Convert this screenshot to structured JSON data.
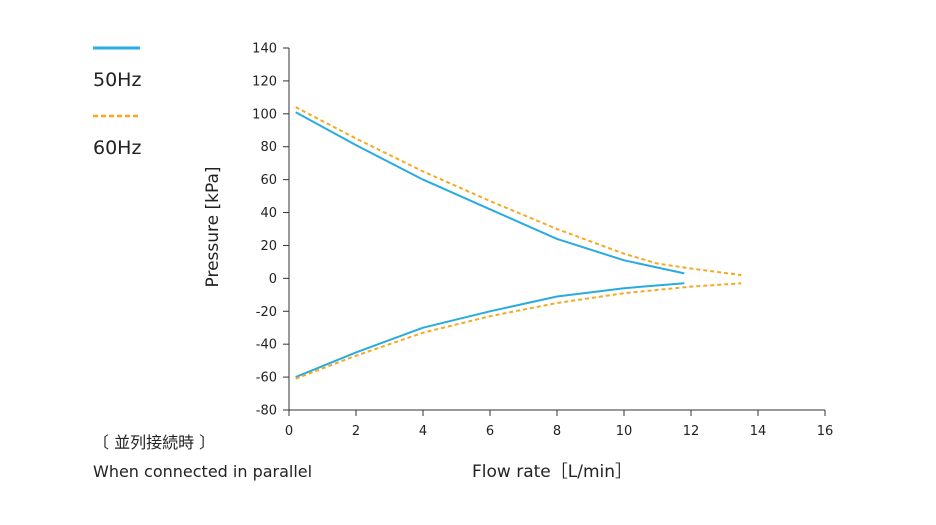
{
  "chart_data": {
    "type": "line",
    "title": "",
    "xlabel": "Flow rate［L/min］",
    "ylabel": "Pressure [kPa]",
    "xlim": [
      0,
      16
    ],
    "ylim": [
      -80,
      140
    ],
    "xticks": [
      0,
      2,
      4,
      6,
      8,
      10,
      12,
      14,
      16
    ],
    "yticks": [
      140,
      120,
      100,
      80,
      60,
      40,
      20,
      0,
      -20,
      -40,
      -60,
      -80
    ],
    "grid": false,
    "legend_position": "top-left",
    "series": [
      {
        "name": "50Hz",
        "color": "#29abe2",
        "style": "solid",
        "segments": [
          {
            "x": [
              0.2,
              2,
              4,
              6,
              8,
              10,
              11.8
            ],
            "y": [
              101,
              81,
              60,
              42,
              24,
              11,
              3
            ]
          },
          {
            "x": [
              0.2,
              2,
              4,
              6,
              8,
              10,
              11.8
            ],
            "y": [
              -60,
              -45,
              -30,
              -20,
              -11,
              -6,
              -3
            ]
          }
        ]
      },
      {
        "name": "60Hz",
        "color": "#f7a823",
        "style": "dashed",
        "segments": [
          {
            "x": [
              0.2,
              2,
              4,
              6,
              8,
              10,
              11,
              12,
              13.5
            ],
            "y": [
              104,
              85,
              65,
              47,
              30,
              15,
              9,
              6,
              2
            ]
          },
          {
            "x": [
              0.2,
              2,
              4,
              6,
              8,
              10,
              11,
              12,
              13.5
            ],
            "y": [
              -61,
              -47,
              -33,
              -23,
              -15,
              -9,
              -7,
              -5,
              -3
            ]
          }
        ]
      }
    ]
  },
  "notes": {
    "line1": "〔 並列接続時 〕",
    "line2": "When connected in parallel"
  }
}
